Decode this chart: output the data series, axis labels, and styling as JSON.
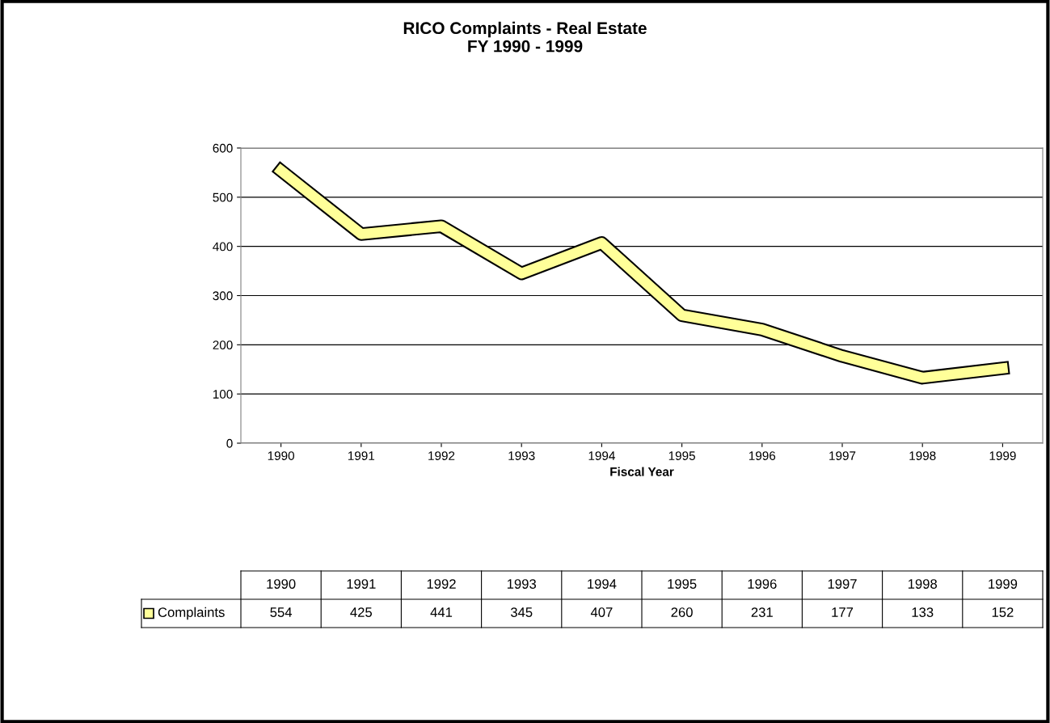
{
  "chart_data": {
    "type": "line",
    "title": "RICO Complaints - Real Estate\nFY 1990 - 1999",
    "xlabel": "Fiscal Year",
    "categories": [
      "1990",
      "1991",
      "1992",
      "1993",
      "1994",
      "1995",
      "1996",
      "1997",
      "1998",
      "1999"
    ],
    "series": [
      {
        "name": "Complaints",
        "color": "#ffff99",
        "values": [
          554,
          425,
          441,
          345,
          407,
          260,
          231,
          177,
          133,
          152
        ]
      }
    ],
    "ylim": [
      0,
      600
    ],
    "yticks": [
      0,
      100,
      200,
      300,
      400,
      500,
      600
    ],
    "grid": "y",
    "legend": "bottom",
    "data_labels": true,
    "marker": "none"
  }
}
